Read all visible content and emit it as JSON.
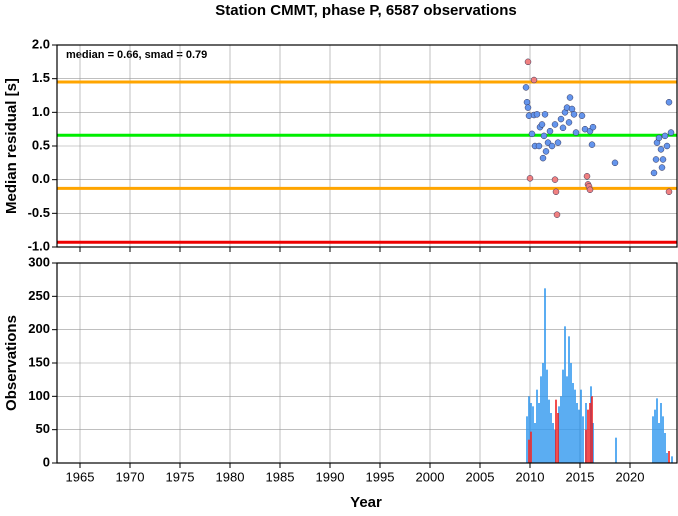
{
  "chart_data": [
    {
      "type": "scatter",
      "title": "Station CMMT, phase P, 6587 observations",
      "annotation": "median = 0.66, smad = 0.79",
      "ylabel": "Median residual [s]",
      "xlim": [
        1962.7,
        2024.7
      ],
      "xticks": [
        1965,
        1970,
        1975,
        1980,
        1985,
        1990,
        1995,
        2000,
        2005,
        2010,
        2015,
        2020
      ],
      "ylim": [
        -1,
        2
      ],
      "yticks": [
        {
          "value": -1,
          "label": "-1.0"
        },
        {
          "value": -0.5,
          "label": "-0.5"
        },
        {
          "value": 0,
          "label": "0.0"
        },
        {
          "value": 0.5,
          "label": "0.5"
        },
        {
          "value": 1,
          "label": "1.0"
        },
        {
          "value": 1.5,
          "label": "1.5"
        },
        {
          "value": 2,
          "label": "2.0"
        }
      ],
      "grid": true,
      "hlines": [
        {
          "value": 1.45,
          "color": "#ffa500"
        },
        {
          "value": -0.13,
          "color": "#ffa500"
        },
        {
          "value": 0.66,
          "color": "#00ee00"
        },
        {
          "value": -0.93,
          "color": "#ee0000"
        }
      ],
      "series": [
        {
          "color": "#6495ed",
          "x": [
            2009.6,
            2009.7,
            2009.8,
            2009.9,
            2010.2,
            2010.4,
            2010.5,
            2010.7,
            2010.9,
            2011.0,
            2011.2,
            2011.3,
            2011.4,
            2011.5,
            2011.6,
            2011.8,
            2012.0,
            2012.2,
            2012.5,
            2012.8,
            2013.1,
            2013.3,
            2013.5,
            2013.7,
            2013.9,
            2014.0,
            2014.2,
            2014.4,
            2014.6,
            2015.2,
            2015.5,
            2016.0,
            2016.2,
            2016.3,
            2018.5,
            2022.4,
            2022.6,
            2022.7,
            2022.9,
            2023.1,
            2023.2,
            2023.3,
            2023.5,
            2023.7,
            2023.9,
            2024.1
          ],
          "values": [
            1.37,
            1.15,
            1.07,
            0.95,
            0.68,
            0.96,
            0.5,
            0.97,
            0.5,
            0.78,
            0.82,
            0.32,
            0.65,
            0.97,
            0.42,
            0.55,
            0.72,
            0.5,
            0.82,
            0.55,
            0.9,
            0.77,
            1.0,
            1.07,
            0.85,
            1.22,
            1.05,
            0.97,
            0.7,
            0.95,
            0.75,
            0.72,
            0.52,
            0.78,
            0.25,
            0.1,
            0.3,
            0.55,
            0.62,
            0.45,
            0.18,
            0.3,
            0.65,
            0.5,
            1.15,
            0.7
          ]
        },
        {
          "color": "#f08080",
          "x": [
            2009.8,
            2010.0,
            2010.4,
            2012.5,
            2012.6,
            2012.7,
            2015.7,
            2015.8,
            2015.9,
            2016.0,
            2023.9
          ],
          "values": [
            1.75,
            0.02,
            1.48,
            0.0,
            -0.18,
            -0.52,
            0.05,
            -0.07,
            -0.1,
            -0.15,
            -0.18
          ]
        }
      ]
    },
    {
      "type": "bar",
      "ylabel": "Observations",
      "xlabel": "Year",
      "xlim": [
        1962.7,
        2024.7
      ],
      "xticks": [
        1965,
        1970,
        1975,
        1980,
        1985,
        1990,
        1995,
        2000,
        2005,
        2010,
        2015,
        2020
      ],
      "ylim": [
        0,
        300
      ],
      "yticks": [
        0,
        50,
        100,
        150,
        200,
        250,
        300
      ],
      "grid": true,
      "series": [
        {
          "color": "#3399ee",
          "x": [
            2009.7,
            2009.9,
            2010.1,
            2010.3,
            2010.5,
            2010.7,
            2010.9,
            2011.1,
            2011.3,
            2011.5,
            2011.7,
            2011.9,
            2012.1,
            2012.3,
            2012.5,
            2012.9,
            2013.1,
            2013.3,
            2013.5,
            2013.7,
            2013.9,
            2014.1,
            2014.3,
            2014.5,
            2014.7,
            2014.9,
            2015.1,
            2015.3,
            2015.6,
            2016.1,
            2016.3,
            2018.6,
            2022.3,
            2022.5,
            2022.7,
            2022.9,
            2023.1,
            2023.3,
            2023.5,
            2023.7,
            2024.2
          ],
          "values": [
            70,
            100,
            90,
            85,
            60,
            110,
            90,
            130,
            150,
            262,
            140,
            95,
            75,
            60,
            50,
            85,
            100,
            140,
            205,
            130,
            190,
            150,
            120,
            110,
            90,
            80,
            110,
            70,
            90,
            115,
            60,
            38,
            70,
            80,
            97,
            60,
            90,
            70,
            45,
            15,
            10
          ]
        },
        {
          "color": "#ee2222",
          "x": [
            2009.9,
            2010.1,
            2012.6,
            2012.8,
            2015.6,
            2015.8,
            2016.0,
            2016.2,
            2023.9
          ],
          "values": [
            35,
            47,
            95,
            75,
            50,
            80,
            90,
            100,
            18
          ]
        }
      ]
    }
  ]
}
